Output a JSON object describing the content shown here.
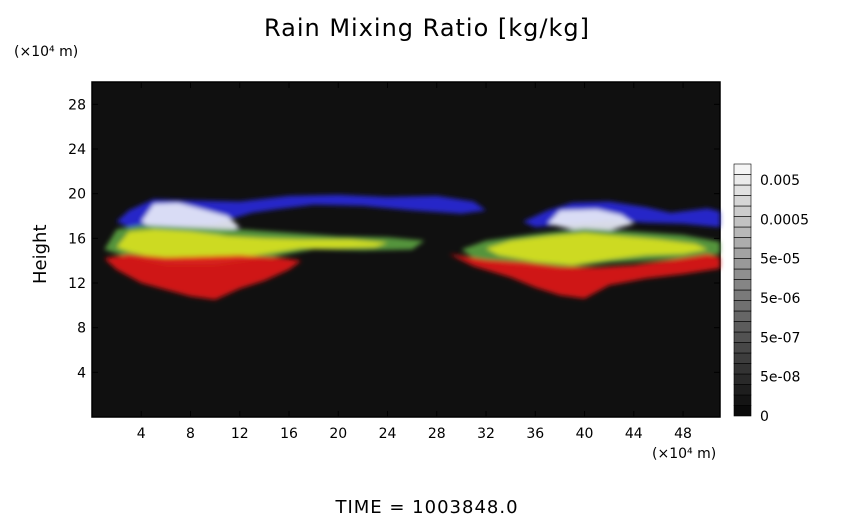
{
  "chart_data": {
    "type": "heatmap",
    "title": "Rain Mixing Ratio [kg/kg]",
    "ylabel": "Height",
    "xunit": "(×10⁴ m)",
    "yunit": "(×10⁴ m)",
    "x_ticks": [
      4,
      8,
      12,
      16,
      20,
      24,
      28,
      32,
      36,
      40,
      44,
      48
    ],
    "y_ticks": [
      4,
      8,
      12,
      16,
      20,
      24,
      28
    ],
    "xlim": [
      0,
      51
    ],
    "ylim": [
      0,
      30
    ],
    "colorbar": {
      "labels": [
        "0.005",
        "0.0005",
        "5e-05",
        "5e-06",
        "5e-07",
        "5e-08",
        "0"
      ]
    },
    "footer": "TIME  =  1003848.0",
    "colors": {
      "background": "#101010",
      "blue": "#2828d8",
      "white": "#e8ecf8",
      "yellow": "#d8e020",
      "green": "#5aa040",
      "red": "#e01818"
    },
    "regions": [
      {
        "color": "blue",
        "points": [
          [
            2,
            17.5
          ],
          [
            3,
            18.5
          ],
          [
            5,
            19.5
          ],
          [
            8,
            19.4
          ],
          [
            12,
            19.3
          ],
          [
            16,
            19.8
          ],
          [
            20,
            19.9
          ],
          [
            24,
            19.7
          ],
          [
            28,
            19.8
          ],
          [
            31,
            19.3
          ],
          [
            32,
            18.5
          ],
          [
            30,
            18.2
          ],
          [
            26,
            18.5
          ],
          [
            22,
            18.9
          ],
          [
            18,
            19
          ],
          [
            15,
            18.6
          ],
          [
            13,
            18.3
          ],
          [
            10,
            17.3
          ],
          [
            6,
            17
          ],
          [
            3,
            17
          ]
        ]
      },
      {
        "color": "blue",
        "points": [
          [
            35,
            17.5
          ],
          [
            37,
            18.5
          ],
          [
            39,
            19.2
          ],
          [
            42,
            19.3
          ],
          [
            45,
            18.8
          ],
          [
            47,
            18.3
          ],
          [
            50,
            18.7
          ],
          [
            51,
            18.4
          ],
          [
            51,
            17
          ],
          [
            48,
            17.3
          ],
          [
            45,
            17.4
          ],
          [
            42,
            17.6
          ],
          [
            39,
            17.3
          ],
          [
            36,
            17
          ]
        ]
      },
      {
        "color": "white",
        "points": [
          [
            4,
            17.5
          ],
          [
            5,
            19.1
          ],
          [
            7,
            19.2
          ],
          [
            9,
            18.6
          ],
          [
            11,
            18
          ],
          [
            12,
            17
          ],
          [
            10,
            16.2
          ],
          [
            7,
            16.4
          ],
          [
            5,
            16.8
          ]
        ]
      },
      {
        "color": "white",
        "points": [
          [
            37,
            17.3
          ],
          [
            38,
            18.5
          ],
          [
            41,
            18.6
          ],
          [
            43,
            18.1
          ],
          [
            44,
            17.3
          ],
          [
            42,
            16.7
          ],
          [
            39,
            16.8
          ]
        ]
      },
      {
        "color": "green",
        "points": [
          [
            1,
            15
          ],
          [
            2,
            16.8
          ],
          [
            4,
            17.2
          ],
          [
            8,
            17
          ],
          [
            12,
            16.8
          ],
          [
            16,
            16.5
          ],
          [
            20,
            16.2
          ],
          [
            24,
            16.1
          ],
          [
            27,
            15.8
          ],
          [
            26,
            15
          ],
          [
            22,
            14.9
          ],
          [
            18,
            15
          ],
          [
            14,
            14.2
          ],
          [
            10,
            13.6
          ],
          [
            6,
            13.6
          ],
          [
            3,
            14.3
          ]
        ]
      },
      {
        "color": "yellow",
        "points": [
          [
            2,
            15.2
          ],
          [
            3,
            16.6
          ],
          [
            5,
            16.8
          ],
          [
            8,
            16.6
          ],
          [
            11,
            16.2
          ],
          [
            14,
            16
          ],
          [
            17,
            15.9
          ],
          [
            21,
            15.9
          ],
          [
            24,
            15.6
          ],
          [
            23,
            15.2
          ],
          [
            20,
            15.1
          ],
          [
            17,
            15.1
          ],
          [
            14,
            14.6
          ],
          [
            11,
            14.1
          ],
          [
            8,
            14
          ],
          [
            5,
            14.3
          ],
          [
            3,
            14.8
          ]
        ]
      },
      {
        "color": "green",
        "points": [
          [
            30,
            15
          ],
          [
            32,
            15.8
          ],
          [
            36,
            16.4
          ],
          [
            40,
            16.9
          ],
          [
            44,
            16.6
          ],
          [
            48,
            16.3
          ],
          [
            51,
            15.7
          ],
          [
            51,
            14.6
          ],
          [
            48,
            14.2
          ],
          [
            45,
            14
          ],
          [
            42,
            13.8
          ],
          [
            38,
            13.3
          ],
          [
            34,
            13.6
          ],
          [
            31,
            14.2
          ]
        ]
      },
      {
        "color": "yellow",
        "points": [
          [
            32,
            15.1
          ],
          [
            34,
            15.8
          ],
          [
            37,
            16.2
          ],
          [
            40,
            16.5
          ],
          [
            43,
            16.2
          ],
          [
            46,
            15.9
          ],
          [
            49,
            15.5
          ],
          [
            50,
            15
          ],
          [
            48,
            14.6
          ],
          [
            45,
            14.5
          ],
          [
            42,
            14.1
          ],
          [
            39,
            13.6
          ],
          [
            36,
            13.9
          ],
          [
            33,
            14.5
          ]
        ]
      },
      {
        "color": "red",
        "points": [
          [
            1,
            14.2
          ],
          [
            3,
            14.6
          ],
          [
            6,
            14.3
          ],
          [
            9,
            14.4
          ],
          [
            12,
            14.5
          ],
          [
            15,
            14.3
          ],
          [
            17,
            14
          ],
          [
            16,
            13.2
          ],
          [
            14,
            12.2
          ],
          [
            12,
            11.5
          ],
          [
            10,
            10.5
          ],
          [
            8,
            10.8
          ],
          [
            6,
            11.4
          ],
          [
            4,
            12
          ],
          [
            2,
            13.2
          ]
        ]
      },
      {
        "color": "red",
        "points": [
          [
            29,
            14.6
          ],
          [
            32,
            14.1
          ],
          [
            35,
            13.9
          ],
          [
            38,
            13.5
          ],
          [
            41,
            13.4
          ],
          [
            44,
            13.6
          ],
          [
            47,
            14.1
          ],
          [
            50,
            14.6
          ],
          [
            51,
            14.3
          ],
          [
            51,
            13.3
          ],
          [
            48,
            12.8
          ],
          [
            45,
            12.4
          ],
          [
            42,
            11.8
          ],
          [
            40,
            10.6
          ],
          [
            38,
            10.9
          ],
          [
            36,
            11.6
          ],
          [
            34,
            12.5
          ],
          [
            31,
            13.5
          ]
        ]
      }
    ]
  }
}
